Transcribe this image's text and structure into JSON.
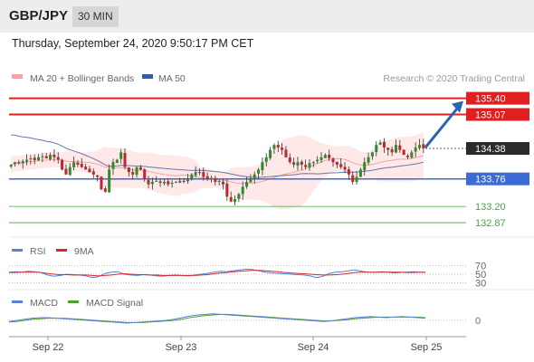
{
  "header": {
    "pair": "GBP/JPY",
    "timeframe": "30 MIN",
    "datetime": "Thursday, September 24, 2020 9:50:17 PM CET"
  },
  "legend": {
    "ma20_bb": "MA 20 + Bollinger Bands",
    "ma50": "MA 50",
    "credit": "Research © 2020 Trading Central",
    "rsi": "RSI",
    "rsi_ma": "9MA",
    "macd": "MACD",
    "macd_signal": "MACD Signal"
  },
  "colors": {
    "resistance": "#e02020",
    "support": "#3a6bd6",
    "target": "#3cab3c",
    "bb_fill": "#fde0e0",
    "ma20": "#f4a3a3",
    "ma50": "#6677aa",
    "candle_up": "#2e8b2e",
    "candle_down": "#c0262b",
    "current": "#2b2b2b",
    "arrow": "#2f64b0",
    "rsi": "#5b7fd6",
    "rsi_ma": "#d42a2a",
    "macd": "#5b7fd6",
    "macd_signal": "#4e9e2a"
  },
  "chart_data": {
    "type": "candlestick",
    "title": "GBP/JPY",
    "ylim": [
      132.65,
      135.65
    ],
    "x_ticks": [
      "Sep 22",
      "Sep 23",
      "Sep 24",
      "Sep 25"
    ],
    "levels": [
      {
        "value": 135.4,
        "label": "135.40",
        "kind": "resistance"
      },
      {
        "value": 135.07,
        "label": "135.07",
        "kind": "resistance"
      },
      {
        "value": 134.38,
        "label": "134.38",
        "kind": "current"
      },
      {
        "value": 133.76,
        "label": "133.76",
        "kind": "pivot"
      },
      {
        "value": 133.2,
        "label": "133.20",
        "kind": "support"
      },
      {
        "value": 132.87,
        "label": "132.87",
        "kind": "support"
      }
    ],
    "close": [
      134.05,
      134.1,
      134.08,
      134.12,
      134.15,
      134.18,
      134.14,
      134.2,
      134.22,
      134.18,
      134.25,
      134.2,
      134.15,
      133.95,
      133.85,
      134.0,
      134.1,
      134.05,
      134.0,
      133.95,
      133.9,
      133.85,
      133.8,
      133.55,
      133.5,
      133.95,
      134.1,
      134.15,
      134.3,
      134.0,
      133.9,
      133.85,
      134.0,
      133.95,
      133.75,
      133.65,
      133.7,
      133.72,
      133.68,
      133.7,
      133.65,
      133.68,
      133.7,
      133.72,
      133.7,
      133.75,
      133.85,
      133.9,
      133.88,
      133.8,
      133.75,
      133.78,
      133.7,
      133.72,
      133.65,
      133.4,
      133.3,
      133.35,
      133.45,
      133.6,
      133.7,
      133.75,
      133.85,
      133.95,
      134.1,
      134.2,
      134.35,
      134.45,
      134.4,
      134.35,
      134.2,
      134.1,
      134.05,
      134.1,
      134.05,
      134.0,
      134.08,
      134.1,
      134.15,
      134.2,
      134.25,
      134.18,
      134.1,
      134.05,
      134.0,
      133.95,
      133.85,
      133.7,
      133.8,
      133.95,
      134.1,
      134.2,
      134.3,
      134.45,
      134.5,
      134.4,
      134.35,
      134.3,
      134.45,
      134.35,
      134.25,
      134.2,
      134.3,
      134.4,
      134.45,
      134.38
    ],
    "series": [
      {
        "name": "RSI",
        "values": [
          55,
          56,
          55,
          57,
          56,
          54,
          48,
          45,
          47,
          50,
          49,
          48,
          46,
          42,
          44,
          52,
          55,
          56,
          50,
          48,
          47,
          49,
          48,
          46,
          45,
          47,
          48,
          47,
          46,
          48,
          50,
          52,
          55,
          57,
          56,
          58,
          60,
          62,
          61,
          58,
          55,
          53,
          52,
          51,
          50,
          49,
          48,
          46,
          42,
          45,
          52,
          55,
          56,
          58,
          60,
          57,
          55,
          54,
          56,
          55,
          53,
          54,
          55,
          56,
          55,
          54
        ]
      },
      {
        "name": "9MA",
        "values": [
          54,
          54,
          55,
          55,
          55,
          54,
          52,
          50,
          49,
          49,
          48,
          48,
          48,
          47,
          46,
          47,
          48,
          50,
          51,
          50,
          49,
          49,
          48,
          48,
          47,
          47,
          47,
          47,
          47,
          47,
          48,
          49,
          51,
          53,
          54,
          56,
          57,
          58,
          59,
          59,
          58,
          57,
          56,
          54,
          53,
          52,
          51,
          50,
          49,
          48,
          48,
          49,
          50,
          52,
          54,
          55,
          55,
          55,
          55,
          55,
          55,
          55,
          54,
          54,
          55,
          55
        ]
      },
      {
        "name": "MACD",
        "values": [
          -0.02,
          0.0,
          0.02,
          0.04,
          0.05,
          0.05,
          0.04,
          0.03,
          0.02,
          0.01,
          0.0,
          -0.01,
          -0.02,
          -0.03,
          -0.04,
          -0.05,
          -0.04,
          -0.03,
          -0.02,
          -0.01,
          0.0,
          0.02,
          0.05,
          0.08,
          0.1,
          0.11,
          0.12,
          0.11,
          0.1,
          0.09,
          0.08,
          0.07,
          0.06,
          0.05,
          0.04,
          0.03,
          0.02,
          0.01,
          0.0,
          -0.01,
          -0.02,
          -0.01,
          0.01,
          0.03,
          0.05,
          0.06,
          0.07,
          0.06,
          0.05,
          0.06,
          0.07,
          0.06,
          0.05,
          0.04
        ]
      },
      {
        "name": "MACD Signal",
        "values": [
          -0.03,
          -0.02,
          0.0,
          0.02,
          0.03,
          0.04,
          0.04,
          0.04,
          0.03,
          0.02,
          0.01,
          0.0,
          -0.01,
          -0.02,
          -0.03,
          -0.04,
          -0.04,
          -0.04,
          -0.03,
          -0.02,
          -0.01,
          0.0,
          0.02,
          0.05,
          0.07,
          0.09,
          0.1,
          0.11,
          0.11,
          0.1,
          0.09,
          0.08,
          0.07,
          0.06,
          0.05,
          0.04,
          0.03,
          0.02,
          0.01,
          0.0,
          -0.01,
          -0.01,
          0.0,
          0.01,
          0.03,
          0.04,
          0.05,
          0.06,
          0.06,
          0.06,
          0.06,
          0.06,
          0.06,
          0.05
        ]
      }
    ],
    "rsi_ticks": [
      "70",
      "50",
      "30"
    ],
    "macd_ticks": [
      "0"
    ]
  }
}
